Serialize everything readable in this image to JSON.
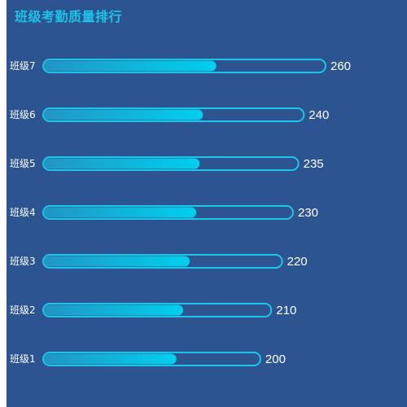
{
  "chart_data": {
    "type": "bar",
    "title": "班级考勤质量排行",
    "categories": [
      "班级7",
      "班级6",
      "班级5",
      "班级4",
      "班级3",
      "班级2",
      "班级1"
    ],
    "values": [
      260,
      240,
      235,
      230,
      220,
      210,
      200
    ],
    "fill_colors": {
      "start": "#2196c4",
      "end": "#00d0ee"
    },
    "track_color": "#1ec4e8",
    "background": "#2c5490"
  }
}
